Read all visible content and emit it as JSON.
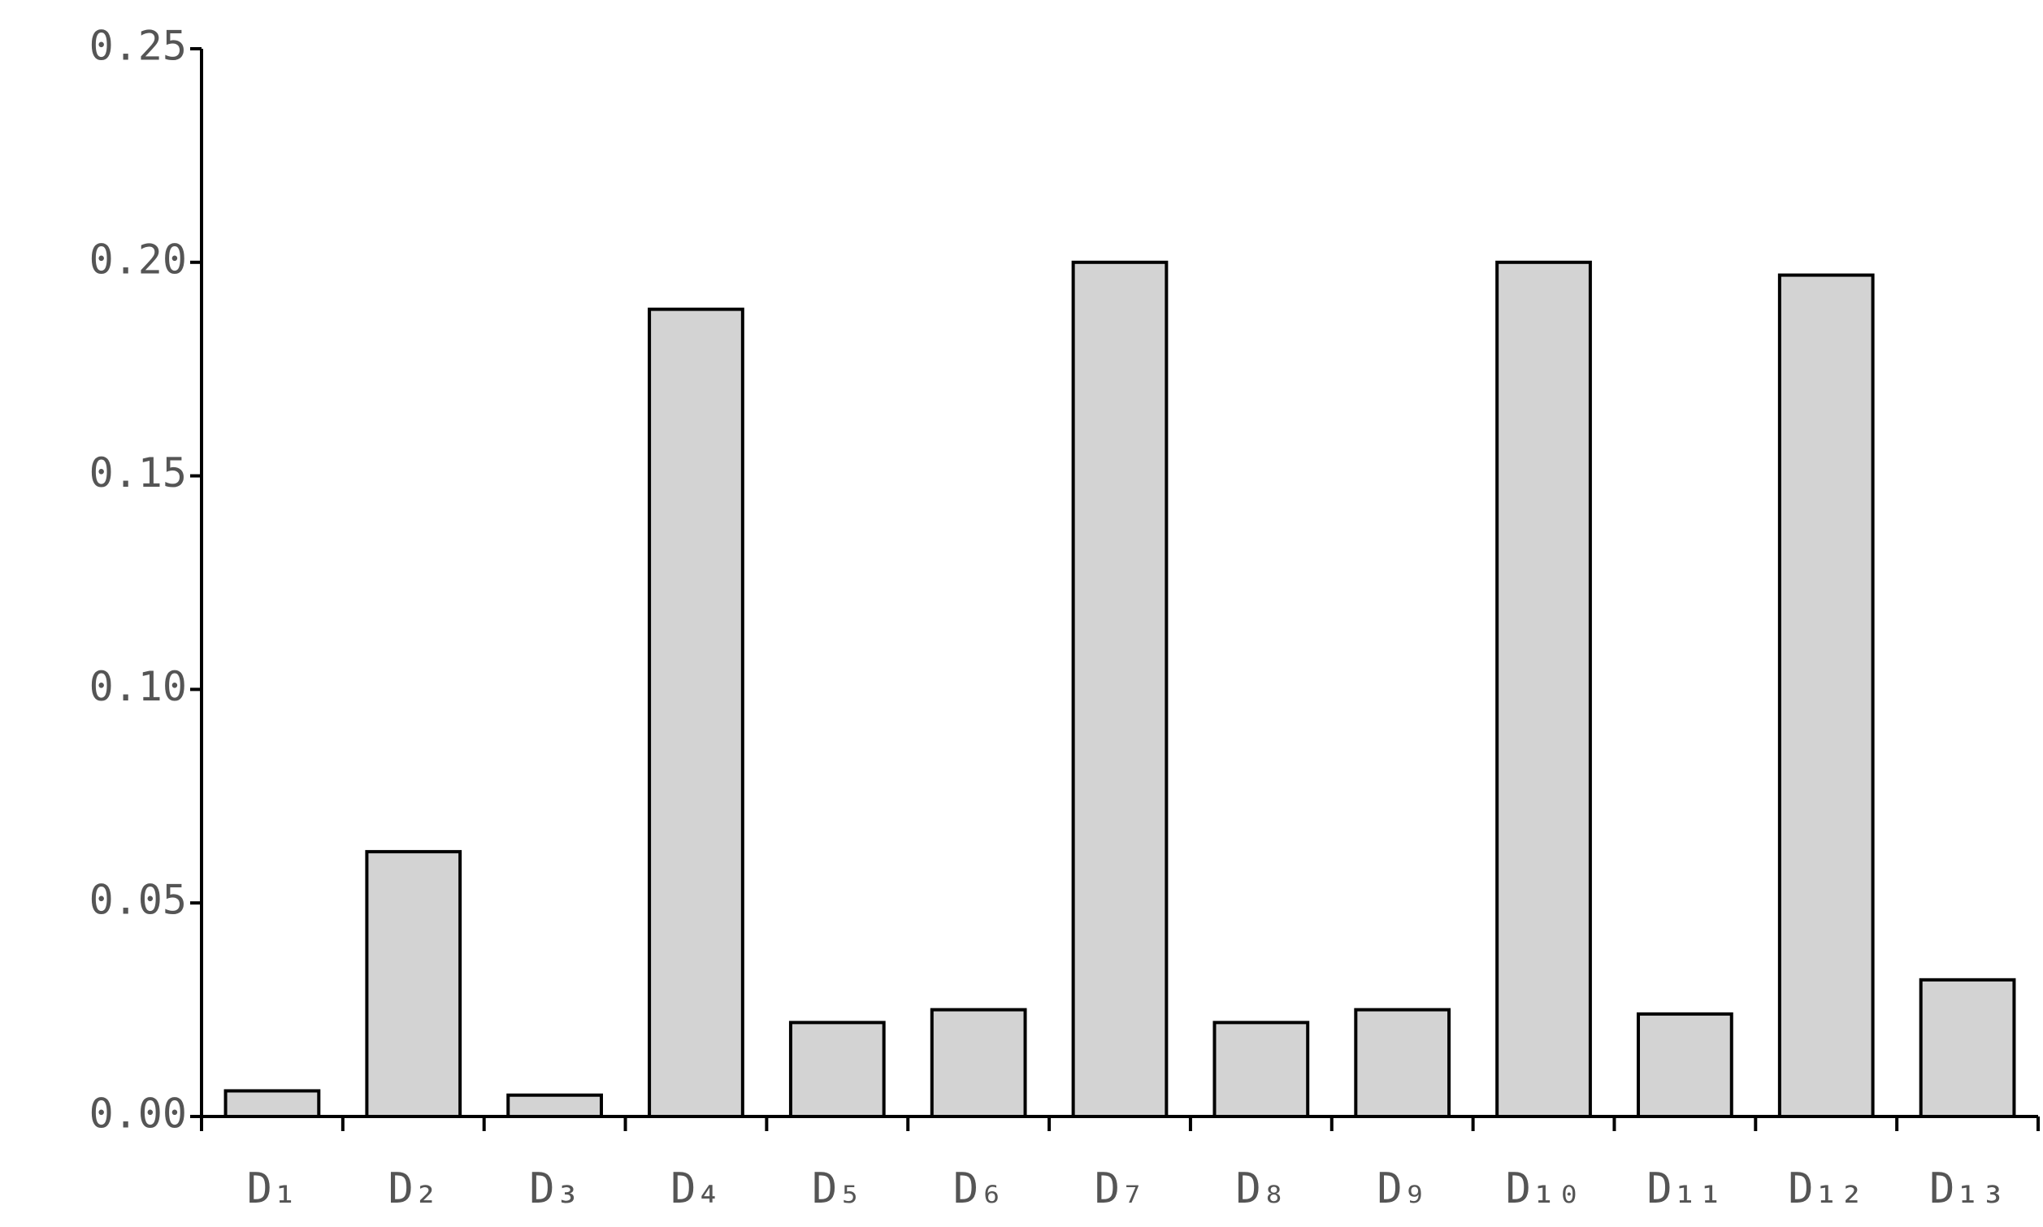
{
  "chart_data": {
    "type": "bar",
    "categories": [
      "D₁",
      "D₂",
      "D₃",
      "D₄",
      "D₅",
      "D₆",
      "D₇",
      "D₈",
      "D₉",
      "D₁₀",
      "D₁₁",
      "D₁₂",
      "D₁₃"
    ],
    "values": [
      0.006,
      0.062,
      0.005,
      0.189,
      0.022,
      0.025,
      0.2,
      0.022,
      0.025,
      0.2,
      0.024,
      0.197,
      0.032
    ],
    "color": "#d3d3d3",
    "ylim": [
      0,
      0.25
    ],
    "yticks": [
      {
        "value": 0,
        "label": "0.00"
      },
      {
        "value": 0.05,
        "label": "0.05"
      },
      {
        "value": 0.1,
        "label": "0.10"
      },
      {
        "value": 0.15,
        "label": "0.15"
      },
      {
        "value": 0.2,
        "label": "0.20"
      },
      {
        "value": 0.25,
        "label": "0.25"
      }
    ],
    "grid": false
  }
}
